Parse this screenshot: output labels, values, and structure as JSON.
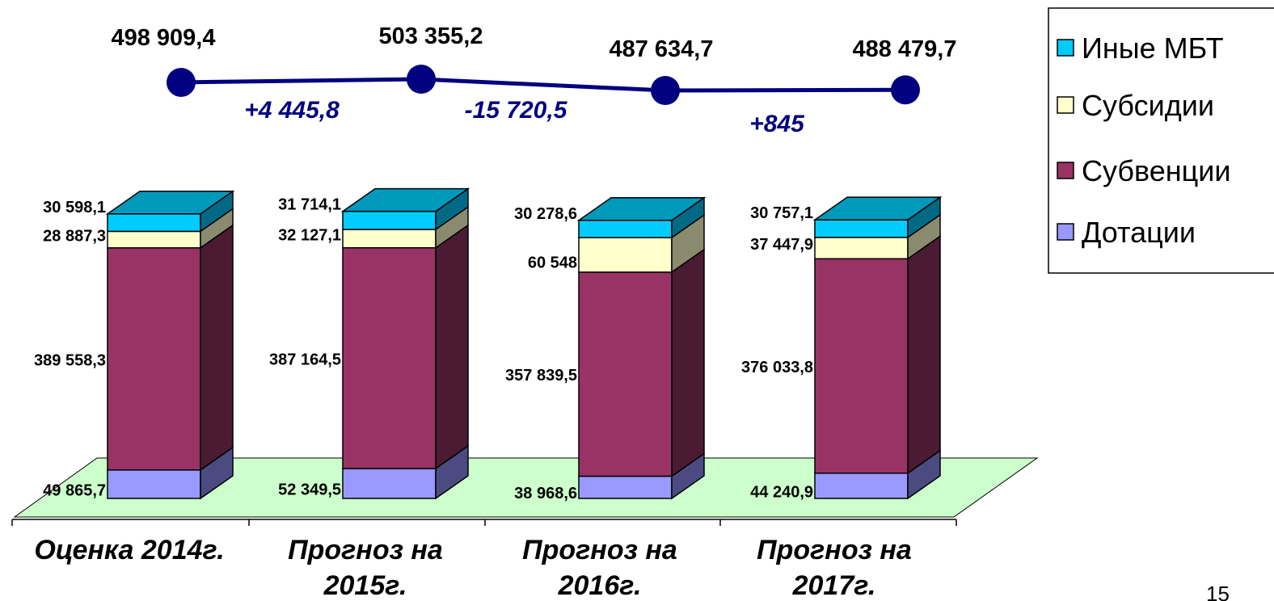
{
  "chart_data": {
    "type": "bar",
    "stacked": true,
    "three_d": true,
    "categories": [
      [
        "Оценка 2014г."
      ],
      [
        "Прогноз на",
        "2015г."
      ],
      [
        "Прогноз на",
        "2016г."
      ],
      [
        "Прогноз на",
        "2017г."
      ]
    ],
    "series": [
      {
        "name": "Дотации",
        "values": [
          49865.7,
          52349.5,
          38968.6,
          44240.9
        ],
        "labels": [
          "49 865,7",
          "52 349,5",
          "38 968,6",
          "44 240,9"
        ],
        "color": "#9999ff",
        "side_color": "#4b4b82"
      },
      {
        "name": "Субвенции",
        "values": [
          389558.3,
          387164.5,
          357839.5,
          376033.8
        ],
        "labels": [
          "389 558,3",
          "387 164,5",
          "357 839,5",
          "376 033,8"
        ],
        "color": "#993366",
        "side_color": "#4b1a33"
      },
      {
        "name": "Субсидии",
        "values": [
          28887.3,
          32127.1,
          60548,
          37447.9
        ],
        "labels": [
          "28 887,3",
          "32 127,1",
          "60 548",
          "37 447,9"
        ],
        "color": "#ffffcc",
        "side_color": "#8a8a6e"
      },
      {
        "name": "Иные МБТ",
        "values": [
          30598.1,
          31714.1,
          30278.6,
          30757.1
        ],
        "labels": [
          "30 598,1",
          "31 714,1",
          "30 278,6",
          "30 757,1"
        ],
        "color": "#00ccff",
        "side_color": "#006a86",
        "top_color": "#0099bb"
      }
    ],
    "totals": {
      "values": [
        498909.4,
        503355.2,
        487634.7,
        488479.7
      ],
      "labels": [
        "498 909,4",
        "503 355,2",
        "487 634,7",
        "488 479,7"
      ],
      "line_color": "#000080"
    },
    "deltas": [
      "+4 445,8",
      "-15 720,5",
      "+845"
    ],
    "floor_color": "#ccffcc",
    "legend": {
      "position": "top-right",
      "order": [
        "Иные МБТ",
        "Субсидии",
        "Субвенции",
        "Дотации"
      ]
    }
  },
  "page_number": "15"
}
